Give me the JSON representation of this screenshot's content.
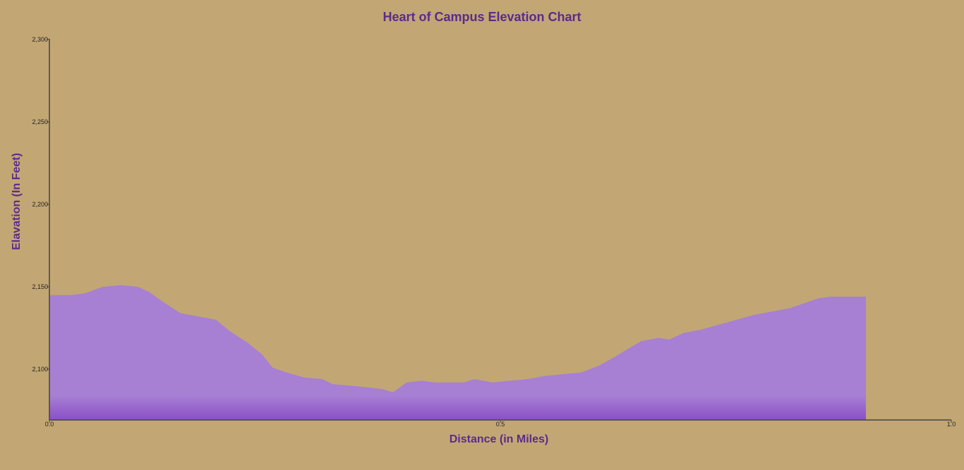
{
  "chart_data": {
    "type": "area",
    "title": "Heart of Campus Elevation Chart",
    "xlabel": "Distance (in Miles)",
    "ylabel": "Elavation (In Feet)",
    "xlim": [
      0,
      1.0
    ],
    "ylim": [
      2070,
      2300
    ],
    "x_ticks": [
      "0.0",
      "0.5",
      "1.0"
    ],
    "x_tick_values": [
      0,
      0.5,
      1.0
    ],
    "y_ticks": [
      "2,100",
      "2,150",
      "2,200",
      "2,250",
      "2,300"
    ],
    "y_tick_values": [
      2100,
      2150,
      2200,
      2250,
      2300
    ],
    "grid": false,
    "legend": "none",
    "colors": {
      "fill_top": "#a77fd3",
      "fill_bottom": "#8a50c8",
      "text": "#5b2b8a",
      "background": "#c2a774"
    },
    "series": [
      {
        "x": [
          0,
          0.0236,
          0.0393,
          0.0589,
          0.0786,
          0.0982,
          0.11,
          0.1257,
          0.1453,
          0.165,
          0.1846,
          0.2003,
          0.22,
          0.2357,
          0.2475,
          0.2632,
          0.2828,
          0.3025,
          0.3142,
          0.3339,
          0.3535,
          0.3692,
          0.381,
          0.3959,
          0.4124,
          0.4282,
          0.4399,
          0.4596,
          0.4713,
          0.491,
          0.5106,
          0.5303,
          0.5499,
          0.5696,
          0.5892,
          0.6089,
          0.6285,
          0.6403,
          0.656,
          0.6756,
          0.6874,
          0.7031,
          0.7227,
          0.7424,
          0.762,
          0.7817,
          0.8013,
          0.821,
          0.8367,
          0.8524,
          0.8665,
          0.8866,
          0.9053
        ],
        "values": [
          2145,
          2145,
          2146,
          2150,
          2151,
          2150,
          2147,
          2141,
          2134,
          2132,
          2130,
          2123,
          2116,
          2109,
          2101,
          2098,
          2095,
          2094,
          2091,
          2090,
          2089,
          2088,
          2086,
          2092,
          2093,
          2092,
          2092,
          2092,
          2094,
          2092,
          2093,
          2094,
          2096,
          2097,
          2098,
          2102,
          2108,
          2112,
          2117,
          2119,
          2118,
          2122,
          2124,
          2127,
          2130,
          2133,
          2135,
          2137,
          2140,
          2143,
          2144,
          2144,
          2144
        ]
      }
    ]
  }
}
